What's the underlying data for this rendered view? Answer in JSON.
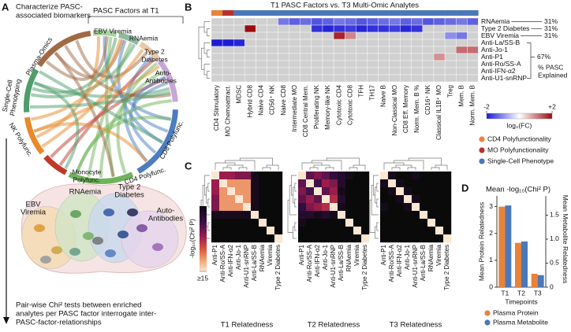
{
  "panel_a": {
    "label": "A",
    "title_lines": [
      "Characterize PASC-",
      "associated biomarkers"
    ],
    "factors_title": "PASC Factors at T1",
    "segments": [
      {
        "lines": [
          "EBV Viremia"
        ],
        "color": "#a9d3a0"
      },
      {
        "lines": [
          "RNAemia"
        ],
        "color": "#8fb8a0"
      },
      {
        "lines": [
          "Type 2",
          "Diabetes"
        ],
        "color": "#e9c9a6"
      },
      {
        "lines": [
          "Auto-",
          "Antibodies"
        ],
        "color": "#c7a6d9"
      },
      {
        "lines": [
          "CD8 Polyfunc."
        ],
        "color": "#4c7dbf"
      },
      {
        "lines": [
          "CD4 Polyfunc."
        ],
        "color": "#6fb35a"
      },
      {
        "lines": [
          "Monocyte",
          "Polyfunc."
        ],
        "color": "#c0392b"
      },
      {
        "lines": [
          "NK Polyfunc."
        ],
        "color": "#e8892c"
      },
      {
        "lines": [
          "Single-Cell",
          "Phenotyping"
        ],
        "color": "#4e9d6b"
      },
      {
        "lines": [
          "Plasma-Omics"
        ],
        "color": "#a06a45"
      }
    ],
    "venn": [
      {
        "lines": [
          "EBV",
          "Viremia"
        ],
        "color": "#f5d9b0"
      },
      {
        "lines": [
          "RNAemia"
        ],
        "color": "#cfe5c4"
      },
      {
        "lines": [
          "Type 2",
          "Diabetes"
        ],
        "color": "#c9d8ee"
      },
      {
        "lines": [
          "Auto-",
          "Antibodies"
        ],
        "color": "#e6d4ec"
      }
    ],
    "caption_lines": [
      "Pair-wise Chi² tests between enriched",
      "analytes per PASC factor interrogate inter-",
      "PASC-factor-relationships"
    ]
  },
  "chart_data": [
    {
      "type": "heatmap",
      "label": "B",
      "title": "T1 PASC Factors vs. T3 Multi-Omic Analytes",
      "columns": [
        "CD4 Stimulatory",
        "MO Chemoattract.",
        "MDSC",
        "Hybrid CD8",
        "Naive CD4",
        "CD56⁺ NK",
        "Naive CD8",
        "Intermediate MO",
        "CD8 Central Mem.",
        "Proliferating NK",
        "Memory-like NK",
        "Cytotoxic CD4",
        "Cytotoxic CD8",
        "TFH",
        "TH17",
        "Naive B",
        "Non-Classical MO",
        "CD8 Eff. Memory",
        "Norm. Mem. B %",
        "CD16⁺ NK",
        "Classical IL1B⁺ MO",
        "Treg",
        "Mem. B",
        "Norm. Mem. B"
      ],
      "column_groups": [
        0,
        1,
        2,
        2,
        2,
        2,
        2,
        2,
        2,
        2,
        2,
        2,
        2,
        2,
        2,
        2,
        2,
        2,
        2,
        2,
        2,
        2,
        2,
        2
      ],
      "groups": [
        {
          "name": "CD4 Polyfunctionality",
          "color": "#e8833a"
        },
        {
          "name": "MO Polyfunctionality",
          "color": "#b8312f"
        },
        {
          "name": "Single-Cell Phenotype",
          "color": "#4a78b8"
        }
      ],
      "rows": [
        "RNAemia",
        "Type 2 Diabetes",
        "EBV Viremia",
        "Anti-La/SS-B",
        "Anti-Jo-1",
        "Anti-P1",
        "Anti-Ro/SS-A",
        "Anti-IFN-α2",
        "Anti-U1-snRNP"
      ],
      "values": [
        [
          null,
          null,
          null,
          null,
          null,
          null,
          -1.2,
          -1.4,
          -1.3,
          -1.5,
          -1.4,
          -1.2,
          -1.3,
          -1.5,
          -1.4,
          -1.3,
          -1.2,
          -1.4,
          -1.3,
          -1.5,
          -1.4,
          -1.3,
          -1.2,
          -1.4
        ],
        [
          null,
          null,
          null,
          2,
          null,
          null,
          null,
          null,
          null,
          -1.8,
          -1.9,
          -1.8,
          -1.7,
          -1.9,
          -1.8,
          -1.8,
          -1.7,
          -1.9,
          -1.8,
          null,
          null,
          null,
          null,
          null
        ],
        [
          null,
          null,
          null,
          null,
          null,
          null,
          null,
          null,
          null,
          null,
          null,
          1.8,
          1.0,
          null,
          null,
          null,
          null,
          null,
          null,
          null,
          null,
          -1.0,
          -1.2,
          null
        ],
        [
          -2,
          -2,
          -1.9,
          null,
          null,
          null,
          null,
          null,
          null,
          null,
          null,
          null,
          null,
          null,
          null,
          null,
          null,
          null,
          null,
          null,
          null,
          null,
          null,
          null
        ],
        [
          null,
          null,
          null,
          null,
          null,
          null,
          null,
          null,
          null,
          null,
          null,
          null,
          null,
          null,
          null,
          null,
          null,
          null,
          null,
          null,
          null,
          null,
          1.2,
          1.2
        ],
        [
          null,
          null,
          null,
          null,
          null,
          null,
          null,
          null,
          null,
          null,
          null,
          null,
          null,
          null,
          null,
          null,
          null,
          null,
          null,
          null,
          0.9,
          null,
          null,
          null
        ],
        [
          null,
          null,
          null,
          null,
          null,
          null,
          null,
          null,
          null,
          null,
          null,
          null,
          null,
          null,
          null,
          null,
          null,
          null,
          null,
          null,
          null,
          null,
          null,
          null
        ],
        [
          null,
          null,
          null,
          null,
          null,
          null,
          null,
          null,
          null,
          null,
          null,
          null,
          null,
          null,
          null,
          null,
          null,
          null,
          null,
          null,
          null,
          null,
          null,
          null
        ],
        [
          null,
          null,
          null,
          null,
          null,
          null,
          null,
          null,
          null,
          null,
          null,
          null,
          null,
          null,
          null,
          null,
          null,
          null,
          null,
          null,
          null,
          null,
          null,
          null
        ]
      ],
      "na_color": "#d0d0d0",
      "zlim": [
        -2,
        2
      ],
      "zticks": [
        -2,
        {
          "value": 2,
          "label": "+2"
        }
      ],
      "colorbar_label": "log₂(FC)",
      "pasc_explained": {
        "values": [
          31,
          31,
          31,
          67
        ],
        "value_labels": [
          "31%",
          "31%",
          "31%",
          "67%"
        ]
      },
      "pasc_explained_title": [
        "% PASC",
        "Explained"
      ]
    },
    {
      "type": "heatmap_set",
      "label": "C",
      "labels": [
        "Anti-P1",
        "Anti-Ro/SS-A",
        "Anti-IFN-α2",
        "Anti-Jo-1",
        "Anti-U1-snRNP",
        "Anti-La/SS-B",
        "RNAemia",
        "Viremia",
        "Type 2 Diabetes"
      ],
      "panels": [
        {
          "title": "T1 Relatedness",
          "values": [
            [
              15,
              7,
              7,
              6,
              6,
              1,
              0,
              0,
              0
            ],
            [
              7,
              15,
              12,
              12,
              12,
              1,
              0,
              0,
              0
            ],
            [
              7,
              12,
              15,
              12,
              12,
              1,
              0,
              0,
              0
            ],
            [
              6,
              12,
              12,
              15,
              12,
              1,
              0,
              0,
              0
            ],
            [
              6,
              12,
              12,
              12,
              15,
              1,
              0,
              0,
              0
            ],
            [
              1,
              1,
              1,
              1,
              1,
              15,
              0,
              0,
              0
            ],
            [
              0,
              0,
              0,
              0,
              0,
              0,
              15,
              0,
              0
            ],
            [
              0,
              0,
              0,
              0,
              0,
              0,
              0,
              15,
              0
            ],
            [
              0,
              0,
              0,
              0,
              0,
              0,
              0,
              0,
              15
            ]
          ]
        },
        {
          "title": "T2 Relatedness",
          "values": [
            [
              15,
              5,
              6,
              5,
              3,
              2,
              1,
              0,
              0
            ],
            [
              5,
              15,
              4,
              7,
              6,
              2,
              0,
              0,
              0
            ],
            [
              6,
              4,
              15,
              5,
              7,
              1,
              0,
              0,
              0
            ],
            [
              5,
              7,
              5,
              15,
              8,
              2,
              0,
              0,
              0
            ],
            [
              3,
              6,
              7,
              8,
              15,
              1,
              0,
              0,
              0
            ],
            [
              2,
              2,
              1,
              2,
              1,
              15,
              0,
              0,
              0
            ],
            [
              1,
              0,
              0,
              0,
              0,
              0,
              15,
              0,
              0
            ],
            [
              0,
              0,
              0,
              0,
              0,
              0,
              0,
              15,
              0
            ],
            [
              0,
              0,
              0,
              0,
              0,
              0,
              0,
              0,
              15
            ]
          ]
        },
        {
          "title": "T3 Relatedness",
          "values": [
            [
              15,
              1,
              0,
              0,
              1,
              0,
              0,
              0,
              0
            ],
            [
              1,
              15,
              1,
              0,
              0,
              0,
              0,
              0,
              0
            ],
            [
              0,
              1,
              15,
              1,
              0,
              0,
              0,
              0,
              0
            ],
            [
              0,
              0,
              1,
              15,
              1,
              0,
              0,
              0,
              0
            ],
            [
              1,
              0,
              0,
              1,
              15,
              0,
              0,
              0,
              0
            ],
            [
              0,
              0,
              0,
              0,
              0,
              15,
              0,
              0,
              0
            ],
            [
              0,
              0,
              0,
              0,
              0,
              0,
              15,
              0,
              0
            ],
            [
              0,
              0,
              0,
              0,
              0,
              0,
              0,
              15,
              0
            ],
            [
              0,
              0,
              0,
              0,
              0,
              0,
              0,
              0,
              15
            ]
          ]
        }
      ],
      "zlim": [
        0,
        15
      ],
      "zticks": [
        {
          "value": 15,
          "label": "≥15"
        }
      ],
      "colorbar_label": "-log₁₀(Chi² P)"
    },
    {
      "type": "bar",
      "label": "D",
      "title": "Mean -log₁₀(Chi² P)",
      "categories": [
        "T1",
        "T2",
        "T3"
      ],
      "xlabel": "Timepoints",
      "ylabel": "Mean Protein Relatedness",
      "y2label": "Mean Metabolite Relatedness",
      "ylim": [
        0,
        3.4
      ],
      "yticks": [
        0,
        1,
        2,
        3
      ],
      "y2lim": [
        0,
        1.9
      ],
      "y2ticks": [
        0,
        0.5,
        {
          "value": 1,
          "label": "1.0"
        },
        1.5
      ],
      "series": [
        {
          "name": "Plasma Protein",
          "color": "#e8833a",
          "values": [
            3.0,
            1.65,
            0.5
          ]
        },
        {
          "name": "Plasma Metabolite",
          "color": "#4a78b8",
          "values": [
            1.7,
            0.95,
            0.25
          ],
          "axis": "y2"
        }
      ]
    }
  ]
}
